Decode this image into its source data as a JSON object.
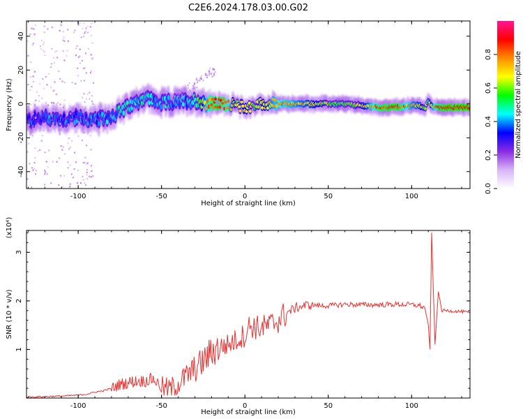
{
  "title": "C2E6.2024.178.03.00.G02",
  "chart_data": [
    {
      "type": "heatmap",
      "xlabel": "Height of straight line (km)",
      "ylabel": "Frequency (Hz)",
      "xlim": [
        -131,
        135
      ],
      "ylim": [
        -50,
        49
      ],
      "xticks": [
        -100,
        -50,
        0,
        50,
        100
      ],
      "yticks": [
        -40,
        -20,
        0,
        20,
        40
      ],
      "grid": false,
      "colorbar": {
        "label": "Normalized spectral amplitude",
        "range": [
          0,
          1
        ],
        "ticks": [
          "0.0",
          "0.2",
          "0.4",
          "0.6",
          "0.8"
        ],
        "colors": [
          "#ffffff",
          "#d8b4f8",
          "#8a2be2",
          "#0000ff",
          "#00ffff",
          "#00ff00",
          "#ffff00",
          "#ff8c00",
          "#ff0000",
          "#ff1493"
        ]
      },
      "ridge": {
        "x": [
          -131,
          -120,
          -110,
          -100,
          -90,
          -80,
          -70,
          -60,
          -55,
          -50,
          -45,
          -40,
          -35,
          -30,
          -25,
          -20,
          -15,
          -10,
          -5,
          0,
          5,
          10,
          20,
          30,
          40,
          50,
          60,
          70,
          80,
          90,
          100,
          105,
          108,
          110,
          112,
          115,
          120,
          135
        ],
        "frequency": [
          -10,
          -8,
          -9,
          -8,
          -10,
          -7,
          -2,
          4,
          2,
          0,
          1,
          1,
          2,
          2,
          1,
          0,
          0,
          0,
          -1,
          -2,
          -1,
          0,
          0,
          0,
          0,
          0,
          0,
          -1,
          -2,
          -2,
          -1,
          -1,
          -3,
          2,
          -1,
          -2,
          -2,
          -2
        ],
        "amplitude": [
          0.35,
          0.35,
          0.35,
          0.35,
          0.38,
          0.42,
          0.45,
          0.45,
          0.4,
          0.4,
          0.42,
          0.42,
          0.42,
          0.45,
          0.7,
          0.85,
          0.88,
          0.8,
          0.6,
          0.7,
          0.6,
          0.65,
          0.8,
          0.75,
          0.7,
          0.6,
          0.55,
          0.65,
          0.85,
          0.9,
          0.75,
          0.7,
          0.6,
          0.55,
          0.7,
          0.85,
          0.9,
          0.9
        ]
      }
    },
    {
      "type": "line",
      "xlabel": "Height of straight line (km)",
      "ylabel": "SNR (10 * v/v)",
      "multiplier": "(x10⁴)",
      "xlim": [
        -131,
        135
      ],
      "ylim": [
        0,
        3.45
      ],
      "xticks": [
        -100,
        -50,
        0,
        50,
        100
      ],
      "yticks": [
        1,
        2,
        3
      ],
      "grid": false,
      "series": [
        {
          "color": "#e83030",
          "x": [
            -131,
            -120,
            -110,
            -100,
            -95,
            -90,
            -85,
            -80,
            -75,
            -70,
            -65,
            -60,
            -55,
            -50,
            -45,
            -40,
            -35,
            -30,
            -25,
            -20,
            -15,
            -10,
            -5,
            0,
            3,
            7,
            10,
            15,
            20,
            25,
            30,
            35,
            40,
            45,
            50,
            60,
            70,
            80,
            90,
            100,
            105,
            108,
            110,
            111,
            112,
            114,
            116,
            118,
            120,
            125,
            130,
            135
          ],
          "y": [
            0.02,
            0.03,
            0.04,
            0.06,
            0.08,
            0.12,
            0.15,
            0.2,
            0.28,
            0.32,
            0.35,
            0.35,
            0.4,
            0.22,
            0.18,
            0.3,
            0.45,
            0.6,
            0.75,
            0.95,
            1.05,
            1.1,
            1.2,
            1.3,
            1.5,
            1.45,
            1.45,
            1.5,
            1.6,
            1.75,
            1.85,
            1.9,
            1.92,
            1.9,
            1.9,
            1.93,
            1.92,
            1.92,
            1.93,
            1.92,
            1.9,
            1.85,
            1.5,
            1.0,
            3.4,
            1.1,
            2.2,
            1.8,
            1.8,
            1.79,
            1.78,
            1.75
          ]
        }
      ]
    }
  ]
}
